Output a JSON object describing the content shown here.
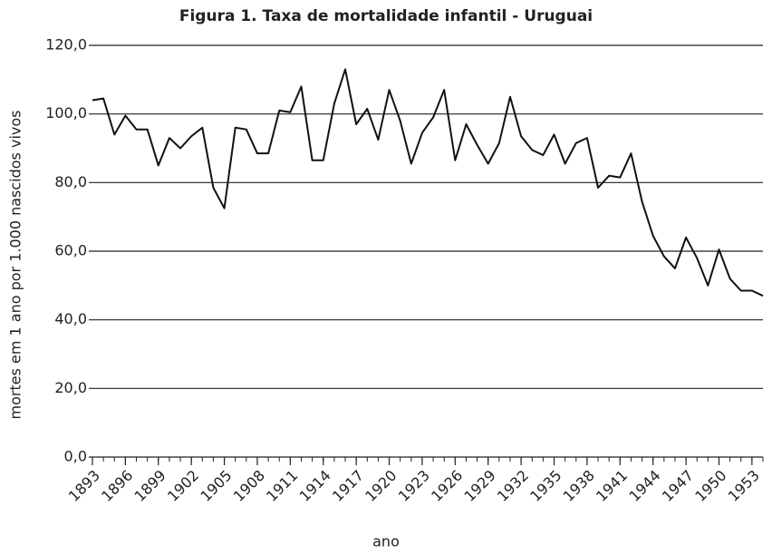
{
  "chart_data": {
    "type": "line",
    "title": "Figura 1. Taxa de mortalidade infantil - Uruguai",
    "x_label": "ano",
    "y_label": "mortes em 1 ano por 1.000 nascidos vivos",
    "x": [
      1893,
      1894,
      1895,
      1896,
      1897,
      1898,
      1899,
      1900,
      1901,
      1902,
      1903,
      1904,
      1905,
      1906,
      1907,
      1908,
      1909,
      1910,
      1911,
      1912,
      1913,
      1914,
      1915,
      1916,
      1917,
      1918,
      1919,
      1920,
      1921,
      1922,
      1923,
      1924,
      1925,
      1926,
      1927,
      1928,
      1929,
      1930,
      1931,
      1932,
      1933,
      1934,
      1935,
      1936,
      1937,
      1938,
      1939,
      1940,
      1941,
      1942,
      1943,
      1944,
      1945,
      1946,
      1947,
      1948,
      1949,
      1950,
      1951,
      1952,
      1953,
      1954
    ],
    "series": [
      {
        "name": "Taxa de mortalidade infantil",
        "color": "#111111",
        "values": [
          104,
          104.5,
          94,
          99.5,
          95.5,
          95.5,
          85,
          93,
          90,
          93.5,
          96,
          78.5,
          72.5,
          96,
          95.5,
          88.5,
          88.5,
          101,
          100.5,
          108,
          86.5,
          86.5,
          103,
          113,
          97,
          101.5,
          92.5,
          107,
          98,
          85.5,
          94.5,
          99,
          107,
          86.5,
          97,
          91,
          85.5,
          91.5,
          105,
          93.5,
          89.5,
          88,
          94,
          85.5,
          91.5,
          93,
          78.5,
          82,
          81.5,
          88.5,
          74.5,
          64.5,
          58.5,
          55,
          64,
          58,
          50,
          60.5,
          52,
          48.5,
          48.5,
          47
        ]
      }
    ],
    "xlim": [
      1893,
      1954
    ],
    "xticks": [
      1893,
      1896,
      1899,
      1902,
      1905,
      1908,
      1911,
      1914,
      1917,
      1920,
      1923,
      1926,
      1929,
      1932,
      1935,
      1938,
      1941,
      1944,
      1947,
      1950,
      1953
    ],
    "ylim": [
      0,
      120
    ],
    "yticks": [
      {
        "value": 0,
        "label": "0,0"
      },
      {
        "value": 20,
        "label": "20,0"
      },
      {
        "value": 40,
        "label": "40,0"
      },
      {
        "value": 60,
        "label": "60,0"
      },
      {
        "value": 80,
        "label": "80,0"
      },
      {
        "value": 100,
        "label": "100,0"
      },
      {
        "value": 120,
        "label": "120,0"
      }
    ],
    "grid": true
  }
}
